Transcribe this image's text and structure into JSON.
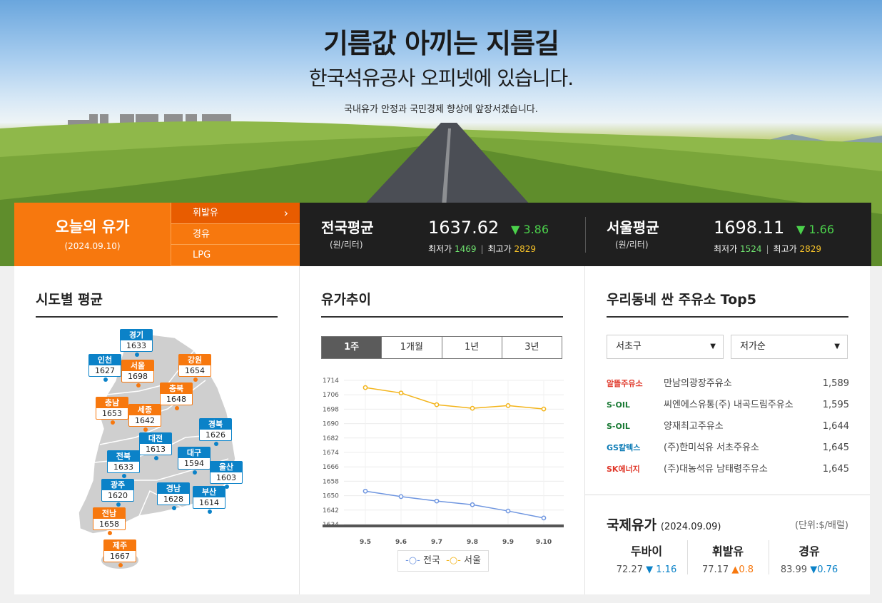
{
  "hero": {
    "title": "기름값 아끼는 지름길",
    "subtitle": "한국석유공사 오피넷에 있습니다.",
    "description": "국내유가 안정과 국민경제 향상에 앞장서겠습니다."
  },
  "today": {
    "label": "오늘의 유가",
    "date": "(2024.09.10)"
  },
  "fuel_tabs": [
    "휘발유",
    "경유",
    "LPG"
  ],
  "national": {
    "name": "전국평균",
    "unit": "(원/리터)",
    "value": "1637.62",
    "change": "▼ 3.86",
    "min_label": "최저가",
    "min": "1469",
    "max_label": "최고가",
    "max": "2829"
  },
  "seoul": {
    "name": "서울평균",
    "unit": "(원/리터)",
    "value": "1698.11",
    "change": "▼ 1.66",
    "min_label": "최저가",
    "min": "1524",
    "max_label": "최고가",
    "max": "2829"
  },
  "regions_panel": {
    "title": "시도별 평균",
    "regions": [
      {
        "name": "경기",
        "value": "1633",
        "color": "blue"
      },
      {
        "name": "인천",
        "value": "1627",
        "color": "blue"
      },
      {
        "name": "서울",
        "value": "1698",
        "color": "orange"
      },
      {
        "name": "강원",
        "value": "1654",
        "color": "orange"
      },
      {
        "name": "충북",
        "value": "1648",
        "color": "orange"
      },
      {
        "name": "충남",
        "value": "1653",
        "color": "orange"
      },
      {
        "name": "세종",
        "value": "1642",
        "color": "orange"
      },
      {
        "name": "대전",
        "value": "1613",
        "color": "blue"
      },
      {
        "name": "경북",
        "value": "1626",
        "color": "blue"
      },
      {
        "name": "전북",
        "value": "1633",
        "color": "blue"
      },
      {
        "name": "대구",
        "value": "1594",
        "color": "blue"
      },
      {
        "name": "울산",
        "value": "1603",
        "color": "blue"
      },
      {
        "name": "광주",
        "value": "1620",
        "color": "blue"
      },
      {
        "name": "경남",
        "value": "1628",
        "color": "blue"
      },
      {
        "name": "부산",
        "value": "1614",
        "color": "blue"
      },
      {
        "name": "전남",
        "value": "1658",
        "color": "orange"
      },
      {
        "name": "제주",
        "value": "1667",
        "color": "orange"
      }
    ]
  },
  "trend_panel": {
    "title": "유가추이",
    "period_tabs": [
      "1주",
      "1개월",
      "1년",
      "3년"
    ],
    "legend": [
      "전국",
      "서울"
    ]
  },
  "chart_data": {
    "type": "line",
    "x": [
      "9.5",
      "9.6",
      "9.7",
      "9.8",
      "9.9",
      "9.10"
    ],
    "series": [
      {
        "name": "전국",
        "values": [
          1652.5,
          1649.5,
          1647,
          1645,
          1641.5,
          1637.6
        ],
        "color": "#6f96e0"
      },
      {
        "name": "서울",
        "values": [
          1710,
          1707,
          1700.5,
          1698.5,
          1700,
          1698.1
        ],
        "color": "#f3b41a"
      }
    ],
    "yticks": [
      1714,
      1706,
      1698,
      1690,
      1682,
      1674,
      1666,
      1658,
      1650,
      1642,
      1634
    ],
    "ylim": [
      1634,
      1714
    ],
    "grid": true
  },
  "top5_panel": {
    "title": "우리동네 싼 주유소 Top5",
    "district": "서초구",
    "sort": "저가순",
    "stations": [
      {
        "brand": "알뜰주유소",
        "name": "만남의광장주유소",
        "price": "1,589",
        "brand_color": "#e0392b"
      },
      {
        "brand": "S-OIL",
        "name": "씨엔에스유통(주) 내곡드림주유소",
        "price": "1,595",
        "brand_color": "#1a7a35"
      },
      {
        "brand": "S-OIL",
        "name": "양재최고주유소",
        "price": "1,644",
        "brand_color": "#1a7a35"
      },
      {
        "brand": "GS칼텍스",
        "name": "(주)한미석유 서초주유소",
        "price": "1,645",
        "brand_color": "#0a7ab5"
      },
      {
        "brand": "SK에너지",
        "name": "(주)대농석유 남태령주유소",
        "price": "1,645",
        "brand_color": "#e0392b"
      }
    ]
  },
  "intl": {
    "title": "국제유가",
    "date": "(2024.09.09)",
    "unit": "(단위:$/배럴)",
    "items": [
      {
        "name": "두바이",
        "value": "72.27",
        "change": "▼ 1.16",
        "dir": "down"
      },
      {
        "name": "휘발유",
        "value": "77.17",
        "change": "▲0.8",
        "dir": "up"
      },
      {
        "name": "경유",
        "value": "83.99",
        "change": "▼0.76",
        "dir": "down"
      }
    ]
  }
}
